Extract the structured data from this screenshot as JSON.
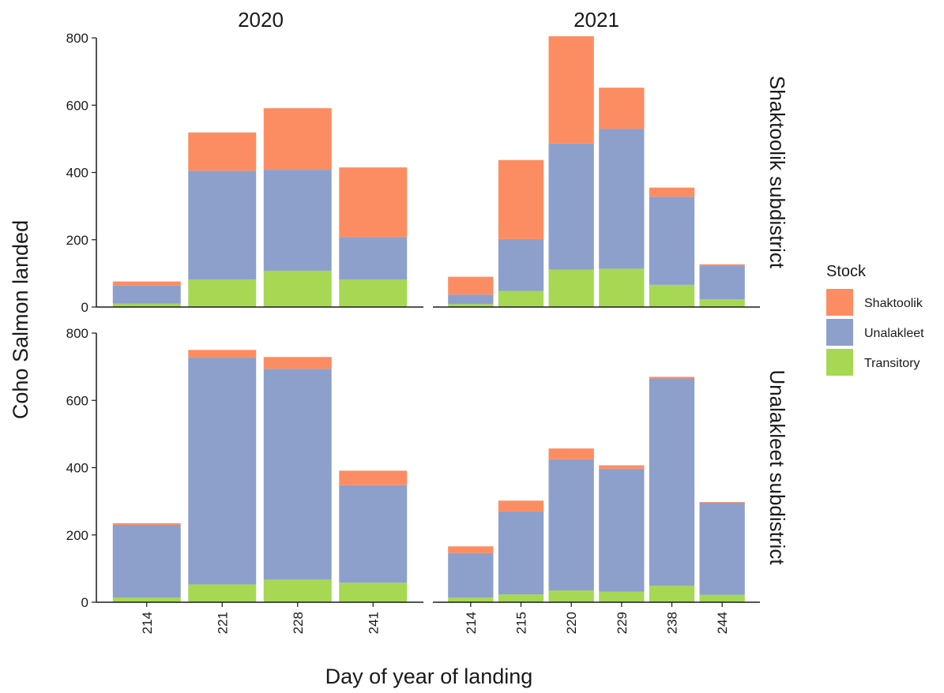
{
  "chart_data": {
    "type": "bar",
    "stacked": true,
    "faceted": true,
    "xlabel": "Day of year of landing",
    "ylabel": "Coho Salmon landed",
    "ylim": [
      0,
      800
    ],
    "yticks": [
      "0",
      "200",
      "400",
      "600",
      "800"
    ],
    "column_strips": [
      "2020",
      "2021"
    ],
    "row_strips": [
      "Shaktoolik subdistrict",
      "Unalakleet subdistrict"
    ],
    "legend": {
      "title": "Stock",
      "placement": "right",
      "entries": [
        {
          "name": "Shaktoolik",
          "color": "#FC8D62"
        },
        {
          "name": "Unalakleet",
          "color": "#8DA0CB"
        },
        {
          "name": "Transitory",
          "color": "#A6D854"
        }
      ]
    },
    "stack_order": [
      "Transitory",
      "Unalakleet",
      "Shaktoolik"
    ],
    "panels": [
      {
        "year": "2020",
        "subdistrict": "Shaktoolik subdistrict",
        "categories": [
          "214",
          "221",
          "228",
          "241"
        ],
        "series": [
          {
            "name": "Transitory",
            "values": [
              10,
              82,
              108,
              82
            ]
          },
          {
            "name": "Unalakleet",
            "values": [
              54,
              323,
              300,
              126
            ]
          },
          {
            "name": "Shaktoolik",
            "values": [
              12,
              114,
              183,
              207
            ]
          }
        ]
      },
      {
        "year": "2021",
        "subdistrict": "Shaktoolik subdistrict",
        "categories": [
          "214",
          "215",
          "220",
          "229",
          "238",
          "244"
        ],
        "series": [
          {
            "name": "Transitory",
            "values": [
              9,
              48,
              111,
              114,
              66,
              23
            ]
          },
          {
            "name": "Unalakleet",
            "values": [
              28,
              154,
              375,
              416,
              262,
              100
            ]
          },
          {
            "name": "Shaktoolik",
            "values": [
              53,
              235,
              319,
              122,
              27,
              4
            ]
          }
        ]
      },
      {
        "year": "2020",
        "subdistrict": "Unalakleet subdistrict",
        "categories": [
          "214",
          "221",
          "228",
          "241"
        ],
        "series": [
          {
            "name": "Transitory",
            "values": [
              14,
              53,
              67,
              58
            ]
          },
          {
            "name": "Unalakleet",
            "values": [
              216,
              674,
              627,
              290
            ]
          },
          {
            "name": "Shaktoolik",
            "values": [
              5,
              23,
              35,
              43
            ]
          }
        ]
      },
      {
        "year": "2021",
        "subdistrict": "Unalakleet subdistrict",
        "categories": [
          "214",
          "215",
          "220",
          "229",
          "238",
          "244"
        ],
        "series": [
          {
            "name": "Transitory",
            "values": [
              14,
              23,
              35,
              31,
              49,
              22
            ]
          },
          {
            "name": "Unalakleet",
            "values": [
              132,
              247,
              390,
              366,
              616,
              274
            ]
          },
          {
            "name": "Shaktoolik",
            "values": [
              20,
              32,
              32,
              10,
              5,
              2
            ]
          }
        ]
      }
    ]
  }
}
